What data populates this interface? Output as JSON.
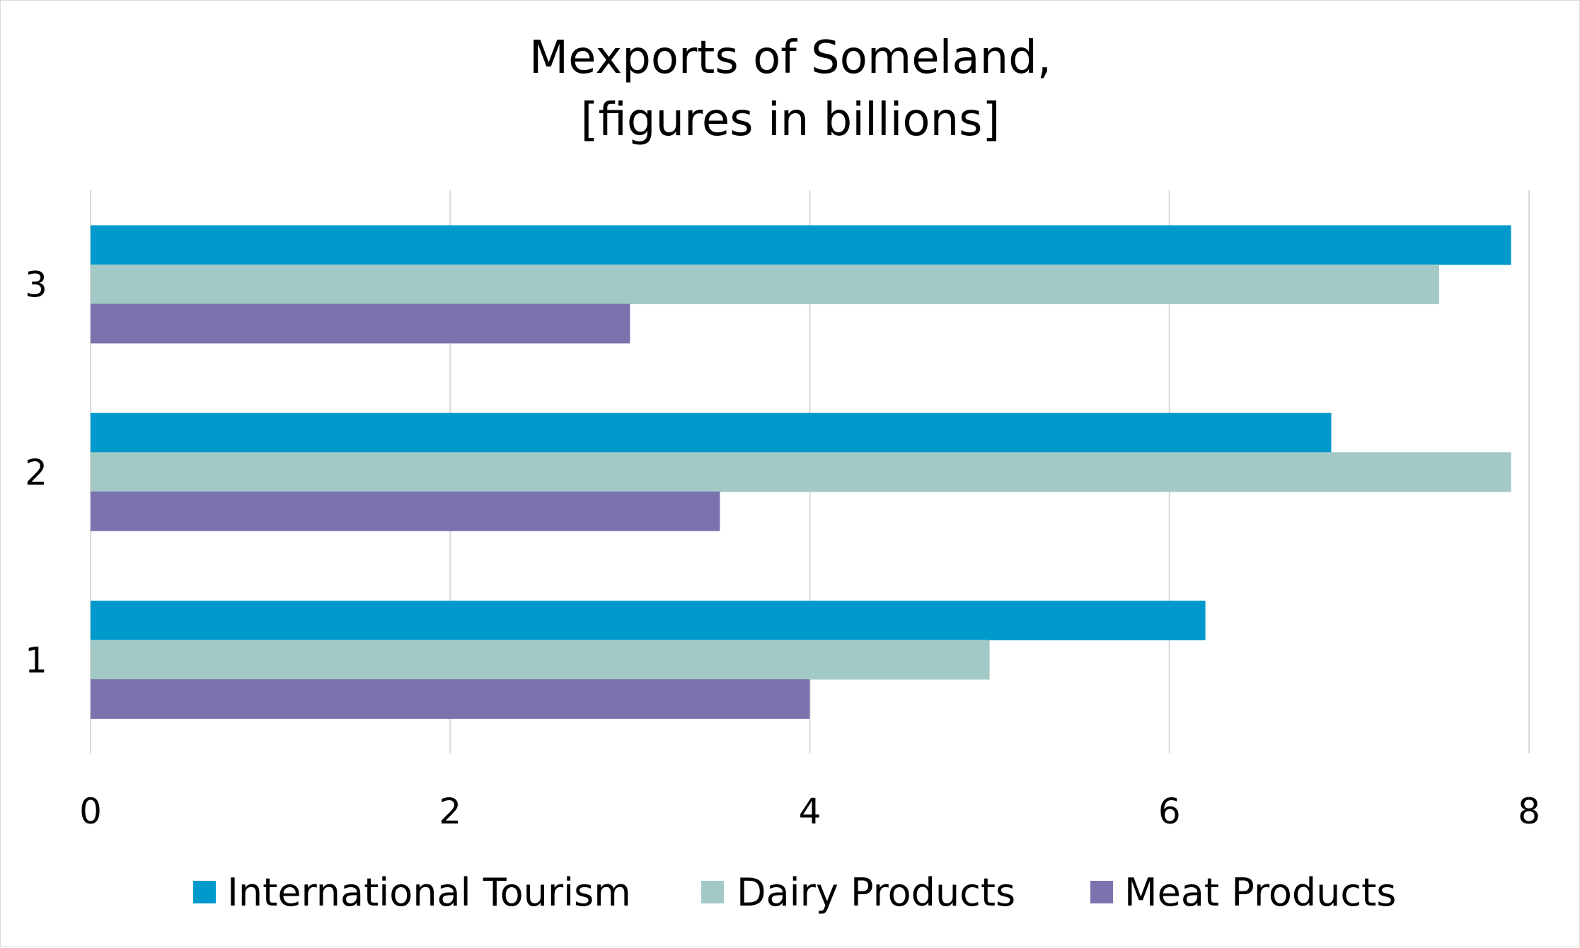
{
  "chart_data": {
    "type": "bar",
    "orientation": "horizontal",
    "title": "Mexports of Someland,",
    "subtitle": "[figures in billions]",
    "categories": [
      "1",
      "2",
      "3"
    ],
    "series": [
      {
        "name": "International Tourism",
        "color": "#0099cc",
        "values": [
          6.2,
          6.9,
          7.9
        ]
      },
      {
        "name": "Dairy Products",
        "color": "#a3c9c7",
        "values": [
          5.0,
          7.9,
          7.5
        ]
      },
      {
        "name": "Meat Products",
        "color": "#7b72ae",
        "values": [
          4.0,
          3.5,
          3.0
        ]
      }
    ],
    "xticks": [
      "0",
      "2",
      "4",
      "6",
      "8"
    ],
    "xlim": [
      0,
      8
    ],
    "grid": true,
    "legend_position": "bottom"
  }
}
